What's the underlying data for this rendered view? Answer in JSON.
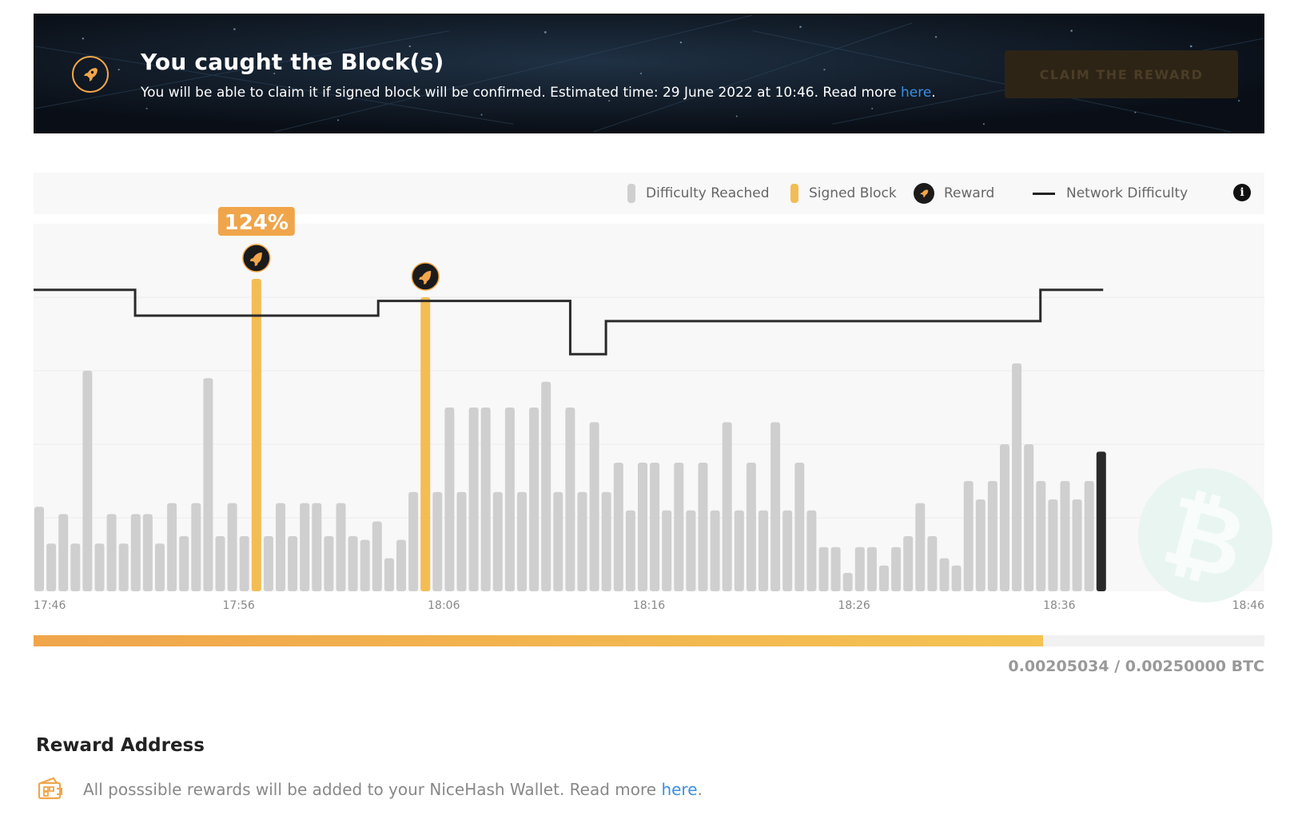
{
  "banner": {
    "title": "You caught the Block(s)",
    "subtitle_text": "You will be able to claim it if signed block will be confirmed. Estimated time: 29 June 2022 at 10:46. Read more ",
    "link_text": "here",
    "subtitle_end": ".",
    "claim_button_label": "CLAIM THE REWARD",
    "icon": "rocket-icon"
  },
  "legend": {
    "items": [
      {
        "label": "Difficulty Reached",
        "color": "#cfcfcf"
      },
      {
        "label": "Signed Block",
        "color": "#f3bd54"
      },
      {
        "label": "Reward",
        "color": "#1b1b1b"
      },
      {
        "label": "Network Difficulty",
        "color": "#222222"
      }
    ],
    "info_icon": "info-icon"
  },
  "colors": {
    "accent": "#f3bd54",
    "bar": "#cfcfcf",
    "current_bar": "#2a2a2a",
    "line": "#2b2b2b",
    "link": "#3d8ee0"
  },
  "chart_data": {
    "type": "bar",
    "x_tick_labels": [
      "17:46",
      "17:56",
      "18:06",
      "18:16",
      "18:26",
      "18:36",
      "18:46"
    ],
    "y_min": 0,
    "y_max": 100,
    "bar_values": [
      23,
      13,
      21,
      13,
      60,
      13,
      21,
      13,
      21,
      21,
      13,
      24,
      15,
      24,
      58,
      15,
      24,
      15,
      85,
      15,
      24,
      15,
      24,
      24,
      15,
      24,
      15,
      14,
      19,
      9,
      14,
      27,
      80,
      27,
      50,
      27,
      50,
      50,
      27,
      50,
      27,
      50,
      57,
      27,
      50,
      27,
      46,
      27,
      35,
      22,
      35,
      35,
      22,
      35,
      22,
      35,
      22,
      46,
      22,
      35,
      22,
      46,
      22,
      35,
      22,
      12,
      12,
      5,
      12,
      12,
      7,
      12,
      15,
      24,
      15,
      9,
      7,
      30,
      25,
      30,
      40,
      62,
      40,
      30,
      25,
      30,
      25,
      30,
      38
    ],
    "signed_indices": [
      18,
      32
    ],
    "current_index": 88,
    "reward_indices": [
      18,
      32
    ],
    "highlight_label": "124%",
    "highlight_index": 18,
    "network_difficulty_steps": [
      {
        "x": 0,
        "y": 82
      },
      {
        "x": 8.25,
        "y": 75
      },
      {
        "x": 28,
        "y": 79
      },
      {
        "x": 43.6,
        "y": 64.5
      },
      {
        "x": 46.5,
        "y": 73.5
      },
      {
        "x": 81.8,
        "y": 82
      },
      {
        "x": 86.9,
        "y": 82
      }
    ]
  },
  "progress": {
    "fraction": 0.8201,
    "text": "0.00205034 / 0.00250000 BTC"
  },
  "reward_address": {
    "title": "Reward Address",
    "note_text": "All posssible rewards will be added to your NiceHash Wallet. Read more ",
    "link_text": "here",
    "note_end": ".",
    "icon": "wallet-icon"
  }
}
